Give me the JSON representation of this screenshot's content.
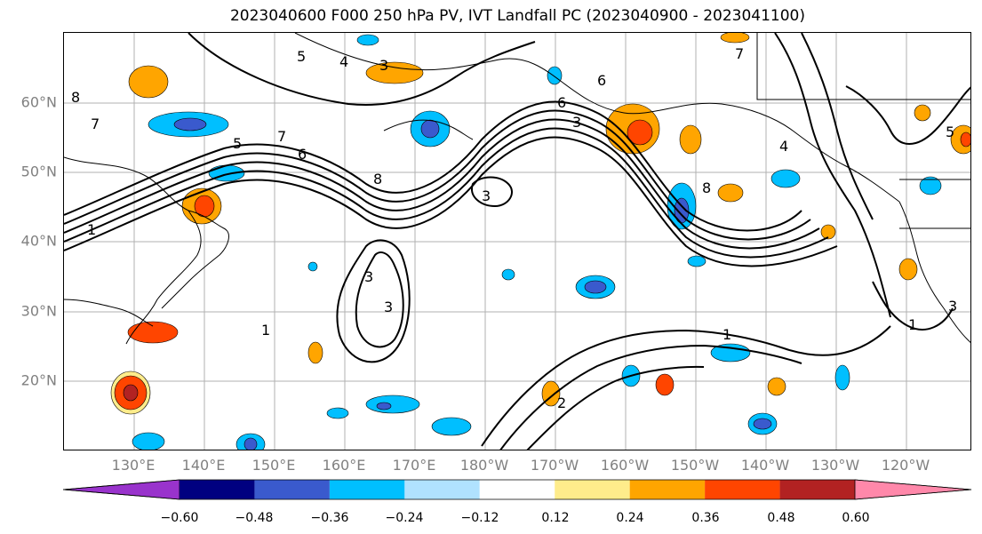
{
  "title": "2023040600 F000 250 hPa PV, IVT Landfall PC (2023040900 - 2023041100)",
  "latitude_labels": [
    "60°N",
    "50°N",
    "40°N",
    "30°N",
    "20°N"
  ],
  "longitude_labels": [
    "130°E",
    "140°E",
    "150°E",
    "160°E",
    "170°E",
    "180°W",
    "170°W",
    "160°W",
    "150°W",
    "140°W",
    "130°W",
    "120°W"
  ],
  "contour_labels": [
    "1",
    "1",
    "1",
    "1",
    "2",
    "3",
    "3",
    "3",
    "3",
    "3",
    "3",
    "4",
    "4",
    "5",
    "5",
    "5",
    "6",
    "6",
    "6",
    "7",
    "7",
    "7",
    "8",
    "8",
    "8"
  ],
  "colorbar": {
    "tick_labels": [
      "−0.60",
      "−0.48",
      "−0.36",
      "−0.24",
      "−0.12",
      "0.12",
      "0.24",
      "0.36",
      "0.48",
      "0.60"
    ],
    "colors": [
      "#9933cc",
      "#000080",
      "#3a5acd",
      "#00bfff",
      "#b0e2ff",
      "#ffffff",
      "#ffec8b",
      "#ffa500",
      "#ff4500",
      "#b22222",
      "#ff88aa"
    ]
  }
}
